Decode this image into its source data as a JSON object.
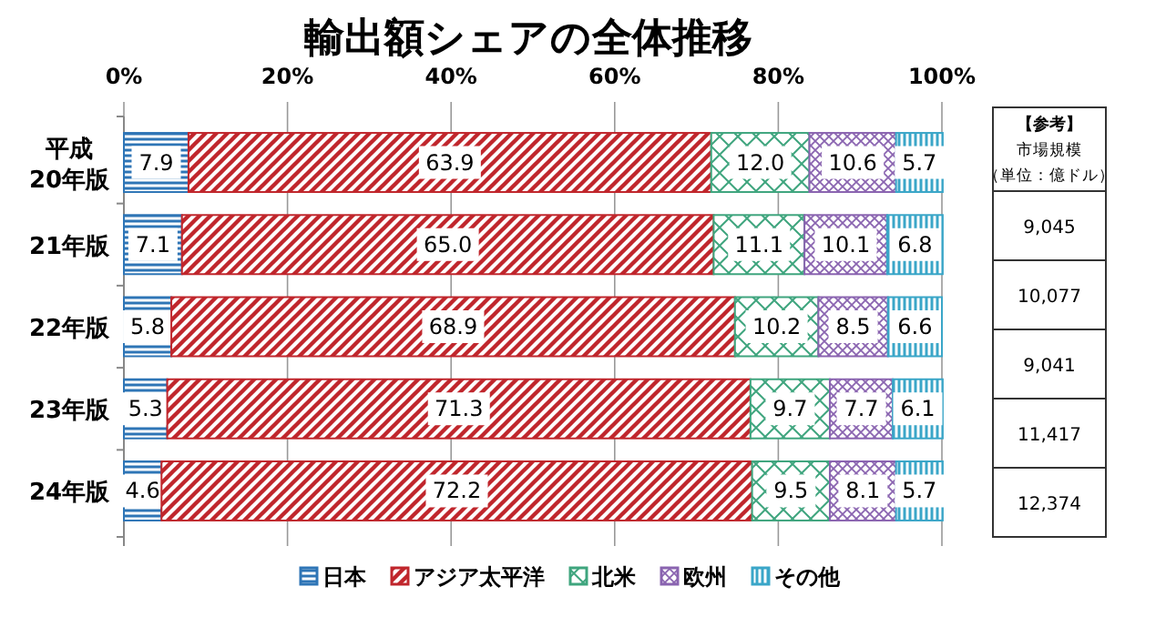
{
  "chart_data": {
    "type": "bar",
    "orientation": "horizontal",
    "stacked": true,
    "title": "輸出額シェアの全体推移",
    "categories": [
      "平成\n20年版",
      "21年版",
      "22年版",
      "23年版",
      "24年版"
    ],
    "series": [
      {
        "name": "日本",
        "color": "#2e75b6",
        "values": [
          7.9,
          7.1,
          5.8,
          5.3,
          4.6
        ],
        "value_labels": [
          "7.9",
          "7.1",
          "5.8",
          "5.3",
          "4.6"
        ]
      },
      {
        "name": "アジア太平洋",
        "color": "#c0262c",
        "values": [
          63.9,
          65.0,
          68.9,
          71.3,
          72.2
        ],
        "value_labels": [
          "63.9",
          "65.0",
          "68.9",
          "71.3",
          "72.2"
        ]
      },
      {
        "name": "北米",
        "color": "#3fa57e",
        "values": [
          12.0,
          11.1,
          10.2,
          9.7,
          9.5
        ],
        "value_labels": [
          "12.0",
          "11.1",
          "10.2",
          "9.7",
          "9.5"
        ]
      },
      {
        "name": "欧州",
        "color": "#8a64b0",
        "values": [
          10.6,
          10.1,
          8.5,
          7.7,
          8.1
        ],
        "value_labels": [
          "10.6",
          "10.1",
          "8.5",
          "7.7",
          "8.1"
        ]
      },
      {
        "name": "その他",
        "color": "#3aa6c8",
        "values": [
          5.7,
          6.8,
          6.6,
          6.1,
          5.7
        ],
        "value_labels": [
          "5.7",
          "6.8",
          "6.6",
          "6.1",
          "5.7"
        ]
      }
    ],
    "xlim": [
      0,
      100
    ],
    "xticks": [
      {
        "value": 0,
        "label": "0%"
      },
      {
        "value": 20,
        "label": "20%"
      },
      {
        "value": 40,
        "label": "40%"
      },
      {
        "value": 60,
        "label": "60%"
      },
      {
        "value": 80,
        "label": "80%"
      },
      {
        "value": 100,
        "label": "100%"
      }
    ],
    "grid": "x",
    "legend": "bottom",
    "annotations": [
      "【参考】",
      "市場規模",
      "（単位：億ドル）",
      "9,045",
      "10,077",
      "9,041",
      "11,417",
      "12,374"
    ]
  }
}
